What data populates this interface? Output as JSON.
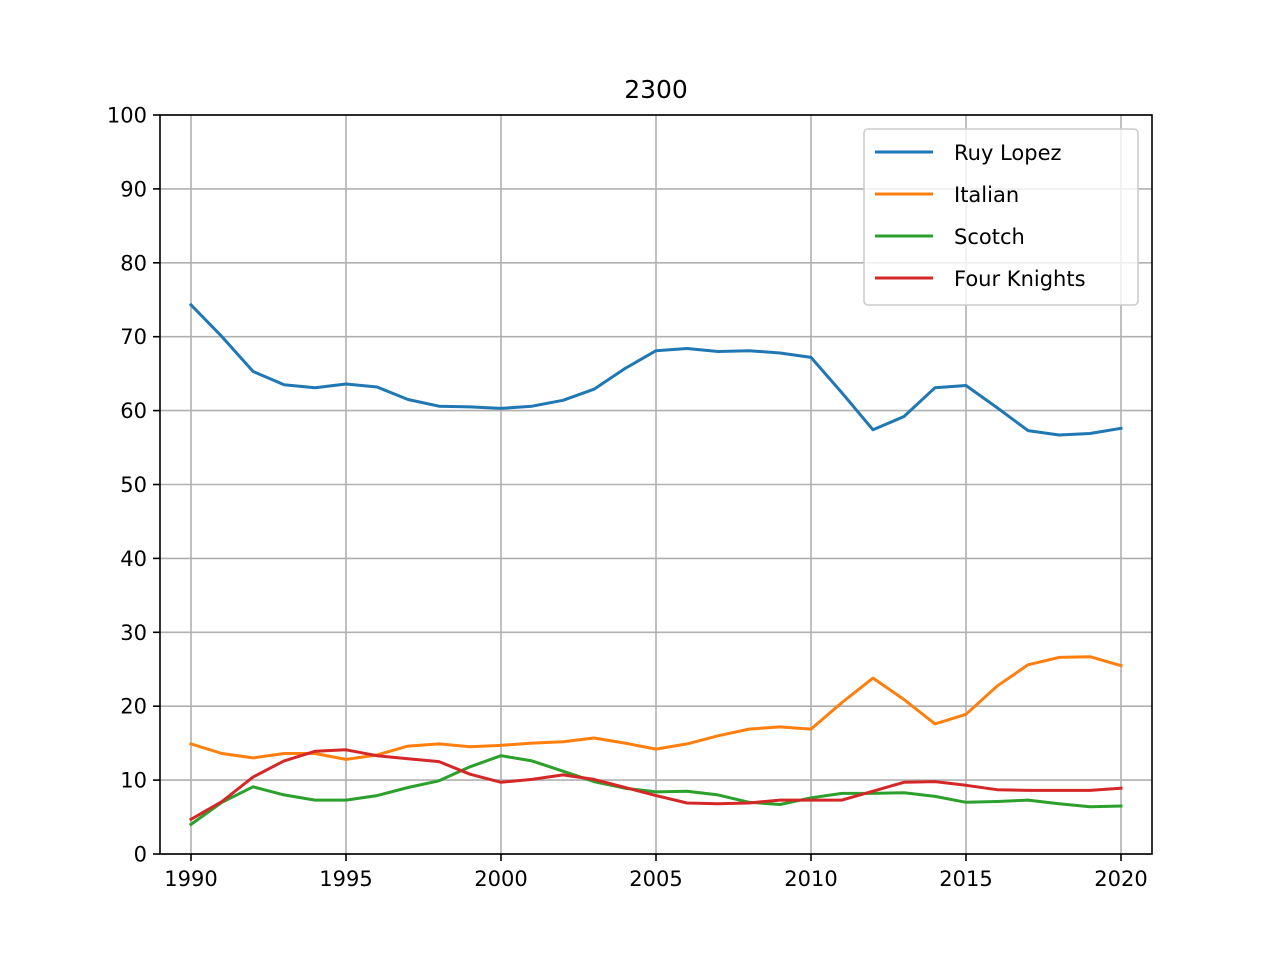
{
  "chart_data": {
    "type": "line",
    "title": "2300",
    "xlabel": "",
    "ylabel": "",
    "xlim": [
      1989,
      2021
    ],
    "ylim": [
      0,
      100
    ],
    "x_ticks": [
      1990,
      1995,
      2000,
      2005,
      2010,
      2015,
      2020
    ],
    "y_ticks": [
      0,
      10,
      20,
      30,
      40,
      50,
      60,
      70,
      80,
      90,
      100
    ],
    "grid": true,
    "legend_position": "top-right",
    "x": [
      1990,
      1991,
      1992,
      1993,
      1994,
      1995,
      1996,
      1997,
      1998,
      1999,
      2000,
      2001,
      2002,
      2003,
      2004,
      2005,
      2006,
      2007,
      2008,
      2009,
      2010,
      2011,
      2012,
      2013,
      2014,
      2015,
      2016,
      2017,
      2018,
      2019,
      2020
    ],
    "series": [
      {
        "name": "Ruy Lopez",
        "color": "#1f77b4",
        "values": [
          74.3,
          70.0,
          65.3,
          63.5,
          63.1,
          63.6,
          63.2,
          61.5,
          60.6,
          60.5,
          60.3,
          60.6,
          61.4,
          62.9,
          65.7,
          68.1,
          68.4,
          68.0,
          68.1,
          67.8,
          67.2,
          62.4,
          57.4,
          59.2,
          63.1,
          63.4,
          60.4,
          57.3,
          56.7,
          56.9,
          57.6
        ]
      },
      {
        "name": "Italian",
        "color": "#ff7f0e",
        "values": [
          14.9,
          13.6,
          13.0,
          13.6,
          13.6,
          12.8,
          13.4,
          14.6,
          14.9,
          14.5,
          14.7,
          15.0,
          15.2,
          15.7,
          15.0,
          14.2,
          14.9,
          16.0,
          16.9,
          17.2,
          16.9,
          20.5,
          23.8,
          20.9,
          17.6,
          18.9,
          22.7,
          25.6,
          26.6,
          26.7,
          25.5
        ]
      },
      {
        "name": "Scotch",
        "color": "#2ca02c",
        "values": [
          4.0,
          7.0,
          9.1,
          8.0,
          7.3,
          7.3,
          7.9,
          9.0,
          9.9,
          11.8,
          13.3,
          12.6,
          11.2,
          9.8,
          8.9,
          8.4,
          8.5,
          8.0,
          7.0,
          6.7,
          7.6,
          8.2,
          8.2,
          8.3,
          7.8,
          7.0,
          7.1,
          7.3,
          6.8,
          6.4,
          6.5
        ]
      },
      {
        "name": "Four Knights",
        "color": "#d62728",
        "values": [
          4.7,
          7.1,
          10.4,
          12.6,
          13.9,
          14.1,
          13.3,
          12.9,
          12.5,
          10.8,
          9.7,
          10.1,
          10.7,
          10.1,
          9.0,
          7.9,
          6.9,
          6.8,
          6.9,
          7.3,
          7.3,
          7.3,
          8.5,
          9.7,
          9.8,
          9.3,
          8.7,
          8.6,
          8.6,
          8.6,
          8.9
        ]
      }
    ]
  }
}
